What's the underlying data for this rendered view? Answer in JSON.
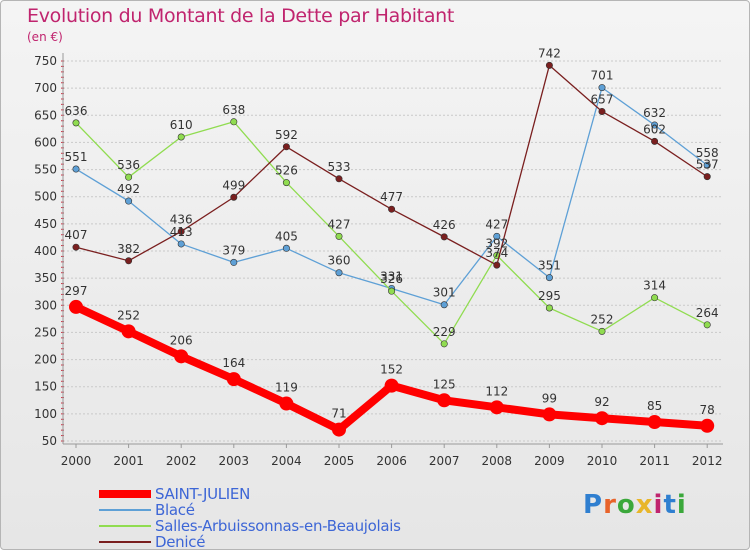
{
  "header": {
    "title": "Evolution du Montant de la Dette par Habitant",
    "subtitle": "(en €)"
  },
  "logo": {
    "text": "Proxiti",
    "letters": [
      "P",
      "r",
      "o",
      "x",
      "i",
      "t",
      "i"
    ],
    "colors": [
      "#2f7fd0",
      "#e8632a",
      "#3ba83b",
      "#e8b62a",
      "#c0246e",
      "#2f7fd0",
      "#3ba83b"
    ]
  },
  "chart_data": {
    "type": "line",
    "title": "Evolution du Montant de la Dette par Habitant",
    "subtitle": "(en €)",
    "xlabel": "",
    "ylabel": "",
    "categories": [
      "2000",
      "2001",
      "2002",
      "2003",
      "2004",
      "2005",
      "2006",
      "2007",
      "2008",
      "2009",
      "2010",
      "2011",
      "2012"
    ],
    "yticks": [
      50,
      100,
      150,
      200,
      250,
      300,
      350,
      400,
      450,
      500,
      550,
      600,
      650,
      700,
      750
    ],
    "ylim": [
      50,
      750
    ],
    "grid": "horizontal",
    "legend_position": "bottom-left",
    "series": [
      {
        "name": "SAINT-JULIEN",
        "color": "#ff0000",
        "emphasis": true,
        "values": [
          297,
          252,
          206,
          164,
          119,
          71,
          152,
          125,
          112,
          99,
          92,
          85,
          78
        ]
      },
      {
        "name": "Blacé",
        "color": "#5ea0d6",
        "emphasis": false,
        "values": [
          551,
          492,
          413,
          379,
          405,
          360,
          331,
          301,
          427,
          351,
          701,
          632,
          558
        ]
      },
      {
        "name": "Salles-Arbuissonnas-en-Beaujolais",
        "color": "#90dc50",
        "emphasis": false,
        "values": [
          636,
          536,
          610,
          638,
          526,
          427,
          326,
          229,
          392,
          295,
          252,
          314,
          264
        ]
      },
      {
        "name": "Denicé",
        "color": "#7a1f1f",
        "emphasis": false,
        "values": [
          407,
          382,
          436,
          499,
          592,
          533,
          477,
          426,
          374,
          742,
          657,
          602,
          537
        ]
      }
    ]
  }
}
